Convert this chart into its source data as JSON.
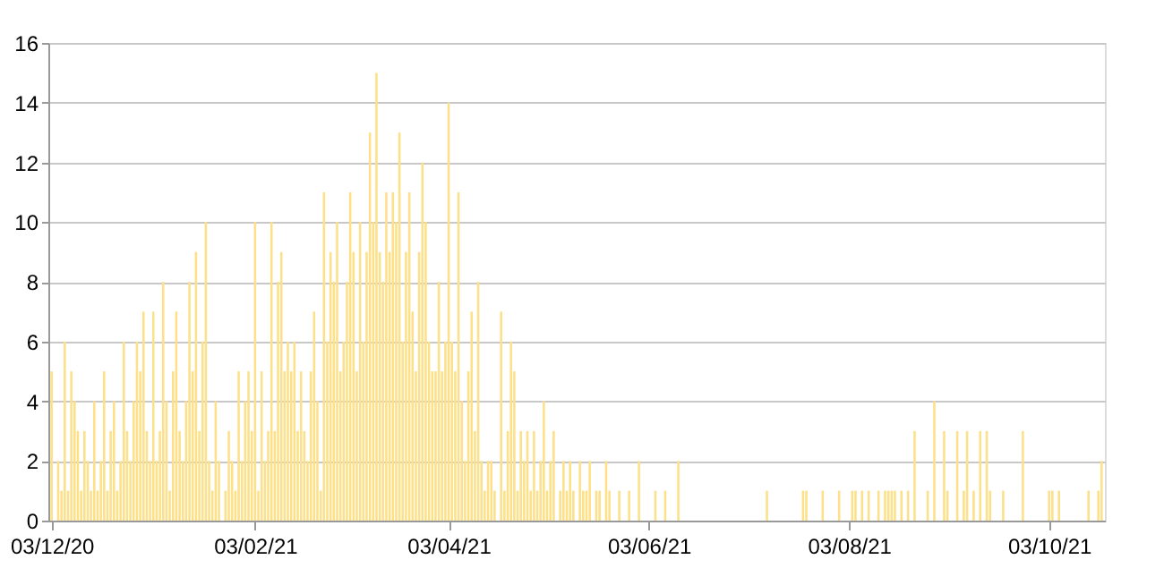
{
  "chart_data": {
    "type": "bar",
    "color": "#fde18a",
    "grid": "y",
    "xlim": [
      "2020-12-02",
      "2021-10-20"
    ],
    "xticks": [
      {
        "value": "2020-12-03",
        "label": "03/12/20"
      },
      {
        "value": "2021-02-03",
        "label": "03/02/21"
      },
      {
        "value": "2021-04-03",
        "label": "03/04/21"
      },
      {
        "value": "2021-06-03",
        "label": "03/06/21"
      },
      {
        "value": "2021-08-03",
        "label": "03/08/21"
      },
      {
        "value": "2021-10-03",
        "label": "03/10/21"
      }
    ],
    "ylim": [
      0,
      16
    ],
    "yticks": [
      0,
      2,
      4,
      6,
      8,
      10,
      12,
      14,
      16
    ],
    "x": [
      "2020-12-03",
      "2020-12-04",
      "2020-12-05",
      "2020-12-06",
      "2020-12-07",
      "2020-12-08",
      "2020-12-09",
      "2020-12-10",
      "2020-12-11",
      "2020-12-12",
      "2020-12-13",
      "2020-12-14",
      "2020-12-15",
      "2020-12-16",
      "2020-12-17",
      "2020-12-18",
      "2020-12-19",
      "2020-12-20",
      "2020-12-21",
      "2020-12-22",
      "2020-12-23",
      "2020-12-24",
      "2020-12-25",
      "2020-12-26",
      "2020-12-27",
      "2020-12-28",
      "2020-12-29",
      "2020-12-30",
      "2020-12-31",
      "2021-01-01",
      "2021-01-02",
      "2021-01-03",
      "2021-01-04",
      "2021-01-05",
      "2021-01-06",
      "2021-01-07",
      "2021-01-08",
      "2021-01-09",
      "2021-01-10",
      "2021-01-11",
      "2021-01-12",
      "2021-01-13",
      "2021-01-14",
      "2021-01-15",
      "2021-01-16",
      "2021-01-17",
      "2021-01-18",
      "2021-01-19",
      "2021-01-20",
      "2021-01-21",
      "2021-01-22",
      "2021-01-23",
      "2021-01-24",
      "2021-01-25",
      "2021-01-26",
      "2021-01-27",
      "2021-01-28",
      "2021-01-29",
      "2021-01-30",
      "2021-01-31",
      "2021-02-01",
      "2021-02-02",
      "2021-02-03",
      "2021-02-04",
      "2021-02-05",
      "2021-02-06",
      "2021-02-07",
      "2021-02-08",
      "2021-02-09",
      "2021-02-10",
      "2021-02-11",
      "2021-02-12",
      "2021-02-13",
      "2021-02-14",
      "2021-02-15",
      "2021-02-16",
      "2021-02-17",
      "2021-02-18",
      "2021-02-19",
      "2021-02-20",
      "2021-02-21",
      "2021-02-22",
      "2021-02-23",
      "2021-02-24",
      "2021-02-25",
      "2021-02-26",
      "2021-02-27",
      "2021-02-28",
      "2021-03-01",
      "2021-03-02",
      "2021-03-03",
      "2021-03-04",
      "2021-03-05",
      "2021-03-06",
      "2021-03-07",
      "2021-03-08",
      "2021-03-09",
      "2021-03-10",
      "2021-03-11",
      "2021-03-12",
      "2021-03-13",
      "2021-03-14",
      "2021-03-15",
      "2021-03-16",
      "2021-03-17",
      "2021-03-18",
      "2021-03-19",
      "2021-03-20",
      "2021-03-21",
      "2021-03-22",
      "2021-03-23",
      "2021-03-24",
      "2021-03-25",
      "2021-03-26",
      "2021-03-27",
      "2021-03-28",
      "2021-03-29",
      "2021-03-30",
      "2021-03-31",
      "2021-04-01",
      "2021-04-02",
      "2021-04-03",
      "2021-04-04",
      "2021-04-05",
      "2021-04-06",
      "2021-04-07",
      "2021-04-08",
      "2021-04-09",
      "2021-04-10",
      "2021-04-11",
      "2021-04-12",
      "2021-04-13",
      "2021-04-14",
      "2021-04-15",
      "2021-04-16",
      "2021-04-17",
      "2021-04-18",
      "2021-04-19",
      "2021-04-20",
      "2021-04-21",
      "2021-04-22",
      "2021-04-23",
      "2021-04-24",
      "2021-04-25",
      "2021-04-26",
      "2021-04-27",
      "2021-04-28",
      "2021-04-29",
      "2021-04-30",
      "2021-05-01",
      "2021-05-02",
      "2021-05-03",
      "2021-05-04",
      "2021-05-05",
      "2021-05-06",
      "2021-05-07",
      "2021-05-08",
      "2021-05-09",
      "2021-05-10",
      "2021-05-11",
      "2021-05-12",
      "2021-05-13",
      "2021-05-14",
      "2021-05-15",
      "2021-05-16",
      "2021-05-17",
      "2021-05-18",
      "2021-05-19",
      "2021-05-20",
      "2021-05-21",
      "2021-05-22",
      "2021-05-23",
      "2021-05-24",
      "2021-05-25",
      "2021-05-26",
      "2021-05-27",
      "2021-05-28",
      "2021-05-29",
      "2021-05-30",
      "2021-05-31",
      "2021-06-01",
      "2021-06-02",
      "2021-06-03",
      "2021-06-04",
      "2021-06-05",
      "2021-06-06",
      "2021-06-07",
      "2021-06-08",
      "2021-06-09",
      "2021-06-10",
      "2021-06-11",
      "2021-06-12",
      "2021-06-13",
      "2021-06-14",
      "2021-06-15",
      "2021-06-16",
      "2021-06-17",
      "2021-06-18",
      "2021-06-19",
      "2021-06-20",
      "2021-06-21",
      "2021-06-22",
      "2021-06-23",
      "2021-06-24",
      "2021-06-25",
      "2021-06-26",
      "2021-06-27",
      "2021-06-28",
      "2021-06-29",
      "2021-06-30",
      "2021-07-01",
      "2021-07-02",
      "2021-07-03",
      "2021-07-04",
      "2021-07-05",
      "2021-07-06",
      "2021-07-07",
      "2021-07-08",
      "2021-07-09",
      "2021-07-10",
      "2021-07-11",
      "2021-07-12",
      "2021-07-13",
      "2021-07-14",
      "2021-07-15",
      "2021-07-16",
      "2021-07-17",
      "2021-07-18",
      "2021-07-19",
      "2021-07-20",
      "2021-07-21",
      "2021-07-22",
      "2021-07-23",
      "2021-07-24",
      "2021-07-25",
      "2021-07-26",
      "2021-07-27",
      "2021-07-28",
      "2021-07-29",
      "2021-07-30",
      "2021-07-31",
      "2021-08-01",
      "2021-08-02",
      "2021-08-03",
      "2021-08-04",
      "2021-08-05",
      "2021-08-06",
      "2021-08-07",
      "2021-08-08",
      "2021-08-09",
      "2021-08-10",
      "2021-08-11",
      "2021-08-12",
      "2021-08-13",
      "2021-08-14",
      "2021-08-15",
      "2021-08-16",
      "2021-08-17",
      "2021-08-18",
      "2021-08-19",
      "2021-08-20",
      "2021-08-21",
      "2021-08-22",
      "2021-08-23",
      "2021-08-24",
      "2021-08-25",
      "2021-08-26",
      "2021-08-27",
      "2021-08-28",
      "2021-08-29",
      "2021-08-30",
      "2021-08-31",
      "2021-09-01",
      "2021-09-02",
      "2021-09-03",
      "2021-09-04",
      "2021-09-05",
      "2021-09-06",
      "2021-09-07",
      "2021-09-08",
      "2021-09-09",
      "2021-09-10",
      "2021-09-11",
      "2021-09-12",
      "2021-09-13",
      "2021-09-14",
      "2021-09-15",
      "2021-09-16",
      "2021-09-17",
      "2021-09-18",
      "2021-09-19",
      "2021-09-20",
      "2021-09-21",
      "2021-09-22",
      "2021-09-23",
      "2021-09-24",
      "2021-09-25",
      "2021-09-26",
      "2021-09-27",
      "2021-09-28",
      "2021-09-29",
      "2021-09-30",
      "2021-10-01",
      "2021-10-02",
      "2021-10-03",
      "2021-10-04",
      "2021-10-05",
      "2021-10-06",
      "2021-10-07",
      "2021-10-08",
      "2021-10-09",
      "2021-10-10",
      "2021-10-11",
      "2021-10-12",
      "2021-10-13",
      "2021-10-14",
      "2021-10-15",
      "2021-10-16",
      "2021-10-17",
      "2021-10-18",
      "2021-10-19"
    ],
    "values": [
      5,
      0,
      2,
      1,
      6,
      1,
      5,
      4,
      3,
      1,
      3,
      2,
      1,
      4,
      1,
      2,
      5,
      1,
      3,
      4,
      1,
      2,
      6,
      3,
      2,
      4,
      6,
      5,
      7,
      3,
      2,
      7,
      2,
      3,
      8,
      4,
      1,
      5,
      7,
      3,
      2,
      4,
      8,
      5,
      9,
      3,
      6,
      10,
      2,
      1,
      4,
      2,
      0,
      1,
      3,
      2,
      1,
      5,
      2,
      4,
      5,
      3,
      10,
      1,
      5,
      2,
      3,
      10,
      3,
      8,
      9,
      5,
      6,
      5,
      6,
      3,
      5,
      3,
      2,
      5,
      7,
      4,
      1,
      11,
      6,
      9,
      8,
      10,
      5,
      6,
      8,
      11,
      9,
      5,
      10,
      6,
      9,
      13,
      10,
      15,
      9,
      8,
      11,
      9,
      11,
      10,
      13,
      6,
      9,
      11,
      7,
      5,
      9,
      12,
      10,
      6,
      5,
      5,
      8,
      5,
      6,
      14,
      6,
      5,
      11,
      4,
      2,
      5,
      7,
      3,
      8,
      2,
      1,
      2,
      2,
      1,
      0,
      7,
      1,
      3,
      6,
      5,
      1,
      3,
      2,
      3,
      1,
      3,
      1,
      2,
      4,
      1,
      2,
      3,
      0,
      1,
      2,
      1,
      2,
      1,
      0,
      2,
      1,
      1,
      2,
      0,
      1,
      1,
      0,
      2,
      1,
      0,
      0,
      1,
      0,
      0,
      1,
      0,
      0,
      2,
      0,
      0,
      0,
      0,
      1,
      0,
      0,
      1,
      0,
      0,
      0,
      2,
      0,
      0,
      0,
      0,
      0,
      0,
      0,
      0,
      0,
      0,
      0,
      0,
      0,
      0,
      0,
      0,
      0,
      0,
      0,
      0,
      0,
      0,
      0,
      0,
      0,
      0,
      1,
      0,
      0,
      0,
      0,
      0,
      0,
      0,
      0,
      0,
      0,
      1,
      1,
      0,
      0,
      0,
      0,
      1,
      0,
      0,
      0,
      0,
      1,
      0,
      0,
      0,
      1,
      1,
      0,
      1,
      0,
      1,
      0,
      0,
      1,
      0,
      1,
      1,
      1,
      1,
      0,
      1,
      0,
      1,
      0,
      3,
      0,
      0,
      0,
      1,
      0,
      4,
      0,
      0,
      3,
      1,
      0,
      0,
      3,
      0,
      1,
      3,
      0,
      1,
      0,
      3,
      0,
      3,
      1,
      0,
      0,
      0,
      1,
      0,
      0,
      0,
      0,
      0,
      3,
      0,
      0,
      0,
      0,
      0,
      0,
      0,
      1,
      1,
      0,
      1,
      0,
      0,
      0,
      0,
      0,
      0,
      0,
      0,
      1,
      0,
      0,
      1,
      2
    ]
  }
}
